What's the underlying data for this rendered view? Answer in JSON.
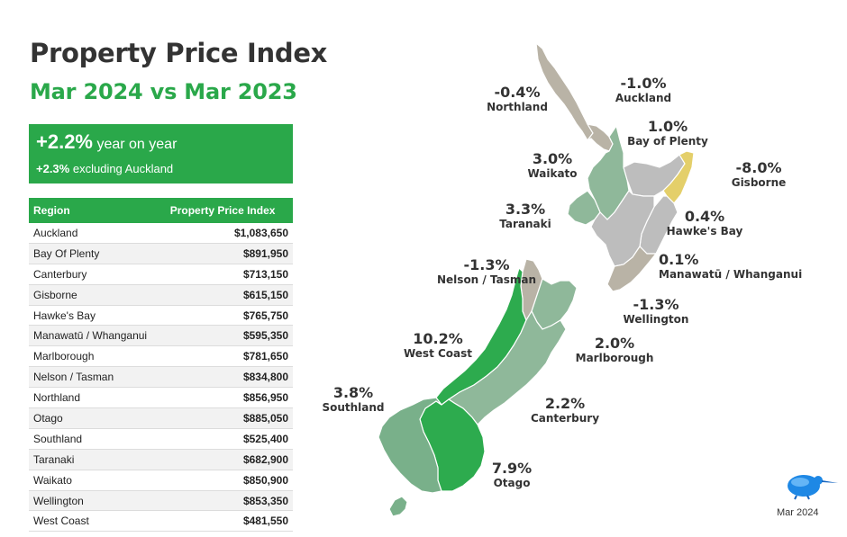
{
  "header": {
    "title": "Property Price Index",
    "subtitle": "Mar 2024 vs Mar 2023"
  },
  "summary": {
    "headline_value": "+2.2%",
    "headline_text": "year on year",
    "sub_value": "+2.3%",
    "sub_text": "excluding Auckland"
  },
  "table": {
    "columns": [
      "Region",
      "Property Price Index"
    ],
    "rows": [
      {
        "region": "Auckland",
        "value": "$1,083,650"
      },
      {
        "region": "Bay Of Plenty",
        "value": "$891,950"
      },
      {
        "region": "Canterbury",
        "value": "$713,150"
      },
      {
        "region": "Gisborne",
        "value": "$615,150"
      },
      {
        "region": "Hawke's Bay",
        "value": "$765,750"
      },
      {
        "region": "Manawatū / Whanganui",
        "value": "$595,350"
      },
      {
        "region": "Marlborough",
        "value": "$781,650"
      },
      {
        "region": "Nelson / Tasman",
        "value": "$834,800"
      },
      {
        "region": "Northland",
        "value": "$856,950"
      },
      {
        "region": "Otago",
        "value": "$885,050"
      },
      {
        "region": "Southland",
        "value": "$525,400"
      },
      {
        "region": "Taranaki",
        "value": "$682,900"
      },
      {
        "region": "Waikato",
        "value": "$850,900"
      },
      {
        "region": "Wellington",
        "value": "$853,350"
      },
      {
        "region": "West Coast",
        "value": "$481,550"
      }
    ]
  },
  "chart_data": {
    "type": "table",
    "title": "Property Price Index",
    "subtitle": "Mar 2024 vs Mar 2023",
    "regions": [
      {
        "name": "Northland",
        "change_pct": -0.4,
        "change_label": "-0.4%",
        "index": 856950
      },
      {
        "name": "Auckland",
        "change_pct": -1.0,
        "change_label": "-1.0%",
        "index": 1083650
      },
      {
        "name": "Bay of Plenty",
        "change_pct": 1.0,
        "change_label": "1.0%",
        "index": 891950
      },
      {
        "name": "Waikato",
        "change_pct": 3.0,
        "change_label": "3.0%",
        "index": 850900
      },
      {
        "name": "Gisborne",
        "change_pct": -8.0,
        "change_label": "-8.0%",
        "index": 615150
      },
      {
        "name": "Taranaki",
        "change_pct": 3.3,
        "change_label": "3.3%",
        "index": 682900
      },
      {
        "name": "Hawke's Bay",
        "change_pct": 0.4,
        "change_label": "0.4%",
        "index": 765750
      },
      {
        "name": "Manawatū / Whanganui",
        "change_pct": 0.1,
        "change_label": "0.1%",
        "index": 595350
      },
      {
        "name": "Nelson / Tasman",
        "change_pct": -1.3,
        "change_label": "-1.3%",
        "index": 834800
      },
      {
        "name": "Wellington",
        "change_pct": -1.3,
        "change_label": "-1.3%",
        "index": 853350
      },
      {
        "name": "West Coast",
        "change_pct": 10.2,
        "change_label": "10.2%",
        "index": 481550
      },
      {
        "name": "Marlborough",
        "change_pct": 2.0,
        "change_label": "2.0%",
        "index": 781650
      },
      {
        "name": "Southland",
        "change_pct": 3.8,
        "change_label": "3.8%",
        "index": 525400
      },
      {
        "name": "Canterbury",
        "change_pct": 2.2,
        "change_label": "2.2%",
        "index": 713150
      },
      {
        "name": "Otago",
        "change_pct": 7.9,
        "change_label": "7.9%",
        "index": 885050
      }
    ]
  },
  "map": {
    "labels": [
      {
        "key": "northland",
        "pct": "-0.4%",
        "name": "Northland"
      },
      {
        "key": "auckland",
        "pct": "-1.0%",
        "name": "Auckland"
      },
      {
        "key": "bop",
        "pct": "1.0%",
        "name": "Bay of Plenty"
      },
      {
        "key": "waikato",
        "pct": "3.0%",
        "name": "Waikato"
      },
      {
        "key": "gisborne",
        "pct": "-8.0%",
        "name": "Gisborne"
      },
      {
        "key": "taranaki",
        "pct": "3.3%",
        "name": "Taranaki"
      },
      {
        "key": "hawkes",
        "pct": "0.4%",
        "name": "Hawke's Bay"
      },
      {
        "key": "manawatu",
        "pct": "0.1%",
        "name": "Manawatū / Whanganui"
      },
      {
        "key": "nelson",
        "pct": "-1.3%",
        "name": "Nelson / Tasman"
      },
      {
        "key": "wellington",
        "pct": "-1.3%",
        "name": "Wellington"
      },
      {
        "key": "westcoast",
        "pct": "10.2%",
        "name": "West Coast"
      },
      {
        "key": "marlborough",
        "pct": "2.0%",
        "name": "Marlborough"
      },
      {
        "key": "southland",
        "pct": "3.8%",
        "name": "Southland"
      },
      {
        "key": "canterbury",
        "pct": "2.2%",
        "name": "Canterbury"
      },
      {
        "key": "otago",
        "pct": "7.9%",
        "name": "Otago"
      }
    ],
    "colors": {
      "decline": "#b9b3a6",
      "flat": "#bdbdbd",
      "moderate_rise": "#8fb89a",
      "strong_rise": "#79b08a",
      "highest_rise": "#2dab4e",
      "largest_fall": "#e4cf6a"
    }
  },
  "footer": {
    "date": "Mar 2024",
    "logo_icon": "kiwi-bird-logo-icon"
  }
}
